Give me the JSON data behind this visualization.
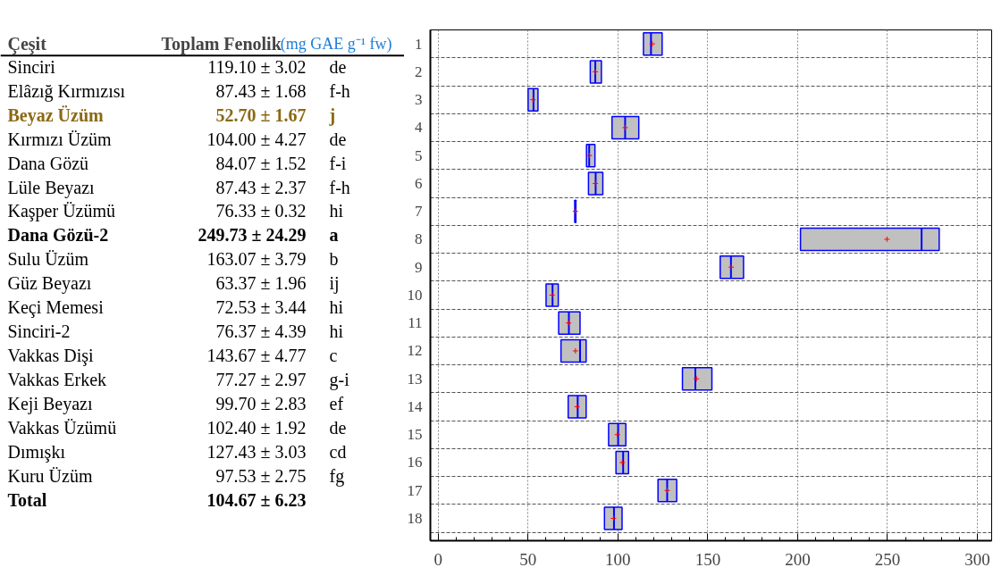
{
  "chart_data": [
    {
      "type": "other",
      "annotations": [
        "Çeşit",
        "Toplam Fenolik",
        "(mg GAE g⁻¹ fw)",
        "Sinciri",
        "119.10 ± 3.02",
        "de",
        "Elâzığ Kırmızısı",
        "87.43 ± 1.68",
        "f-h",
        "Beyaz Üzüm",
        "52.70 ± 1.67",
        "j",
        "Kırmızı Üzüm",
        "104.00 ± 4.27",
        "de",
        "Dana Gözü",
        "84.07 ± 1.52",
        "f-i",
        "Lüle Beyazı",
        "87.43 ± 2.37",
        "f-h",
        "Kaşper Üzümü",
        "76.33 ± 0.32",
        "hi",
        "Dana Gözü-2",
        "249.73 ± 24.29",
        "a",
        "Sulu Üzüm",
        "163.07 ± 3.79",
        "b",
        "Güz Beyazı",
        "63.37 ± 1.96",
        "ij",
        "Keçi Memesi",
        "72.53 ± 3.44",
        "hi",
        "Sinciri-2",
        "76.37 ± 4.39",
        "hi",
        "Vakkas Dişi",
        "143.67 ± 4.77",
        "c",
        "Vakkas Erkek",
        "77.27 ± 2.97",
        "g-i",
        "Keji Beyazı",
        "99.70 ± 2.83",
        "ef",
        "Vakkas Üzümü",
        "102.40 ± 1.92",
        "de",
        "Dımışkı",
        "127.43 ± 3.03",
        "cd",
        "Kuru Üzüm",
        "97.53 ± 2.75",
        "fg",
        "Total",
        "104.67 ± 6.23"
      ]
    },
    {
      "type": "box",
      "orientation": "horizontal",
      "categories": [
        "1",
        "2",
        "3",
        "4",
        "5",
        "6",
        "7",
        "8",
        "9",
        "10",
        "11",
        "12",
        "13",
        "14",
        "15",
        "16",
        "17",
        "18"
      ],
      "xlim": [
        -4.4,
        308
      ],
      "xticks": [
        0,
        50,
        100,
        150,
        200,
        250,
        300
      ],
      "grid": true,
      "boxes": [
        {
          "low": 114.2,
          "q1": 114.2,
          "median": 118.4,
          "q3": 124.6,
          "high": 124.6,
          "mean": 119.1
        },
        {
          "low": 84.6,
          "q1": 84.6,
          "median": 87.4,
          "q3": 90.8,
          "high": 90.8,
          "mean": 87.43
        },
        {
          "low": 50.0,
          "q1": 50.0,
          "median": 53.0,
          "q3": 55.5,
          "high": 55.5,
          "mean": 52.7
        },
        {
          "low": 96.7,
          "q1": 96.7,
          "median": 104.0,
          "q3": 111.6,
          "high": 111.6,
          "mean": 104.0
        },
        {
          "low": 82.5,
          "q1": 82.5,
          "median": 84.0,
          "q3": 87.2,
          "high": 87.2,
          "mean": 84.07
        },
        {
          "low": 83.6,
          "q1": 83.6,
          "median": 87.6,
          "q3": 91.6,
          "high": 91.6,
          "mean": 87.43
        },
        {
          "low": 76.0,
          "q1": 76.0,
          "median": 76.3,
          "q3": 76.6,
          "high": 76.6,
          "mean": 76.33
        },
        {
          "low": 201.6,
          "q1": 201.6,
          "median": 269.0,
          "q3": 278.8,
          "high": 278.8,
          "mean": 249.73
        },
        {
          "low": 156.9,
          "q1": 156.9,
          "median": 162.9,
          "q3": 169.9,
          "high": 169.9,
          "mean": 163.07
        },
        {
          "low": 60.0,
          "q1": 60.0,
          "median": 63.6,
          "q3": 66.8,
          "high": 66.8,
          "mean": 63.37
        },
        {
          "low": 67.0,
          "q1": 67.0,
          "median": 72.7,
          "q3": 78.9,
          "high": 78.9,
          "mean": 72.53
        },
        {
          "low": 68.3,
          "q1": 68.3,
          "median": 78.9,
          "q3": 82.3,
          "high": 82.3,
          "mean": 76.37
        },
        {
          "low": 135.9,
          "q1": 135.9,
          "median": 143.1,
          "q3": 152.3,
          "high": 152.3,
          "mean": 143.67
        },
        {
          "low": 72.3,
          "q1": 72.3,
          "median": 77.6,
          "q3": 82.3,
          "high": 82.3,
          "mean": 77.27
        },
        {
          "low": 94.8,
          "q1": 94.8,
          "median": 100.1,
          "q3": 104.4,
          "high": 104.4,
          "mean": 99.7
        },
        {
          "low": 98.9,
          "q1": 98.9,
          "median": 102.9,
          "q3": 105.9,
          "high": 105.9,
          "mean": 102.4
        },
        {
          "low": 122.3,
          "q1": 122.3,
          "median": 127.4,
          "q3": 132.7,
          "high": 132.7,
          "mean": 127.43
        },
        {
          "low": 92.5,
          "q1": 92.5,
          "median": 97.8,
          "q3": 102.3,
          "high": 102.3,
          "mean": 97.53
        }
      ]
    }
  ]
}
